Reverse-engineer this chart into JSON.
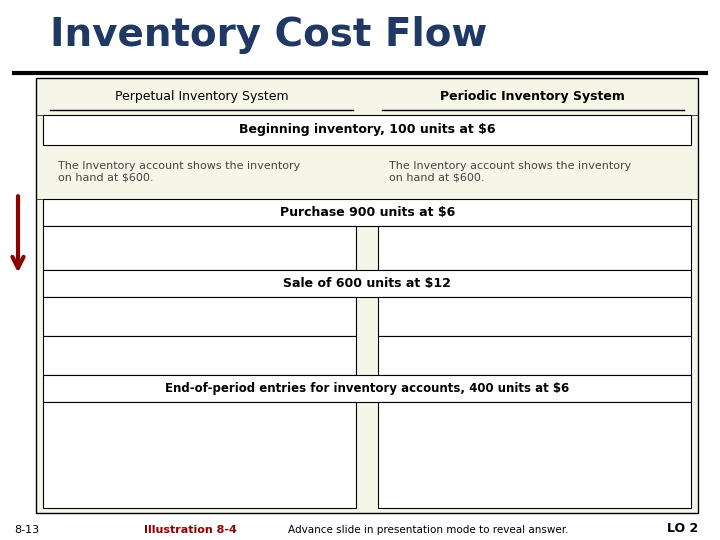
{
  "title": "Inventory Cost Flow",
  "title_color": "#1F3864",
  "title_fontsize": 28,
  "background_color": "#FFFFFF",
  "table_bg": "#F5F5E8",
  "header_left": "Perpetual Inventory System",
  "header_right": "Periodic Inventory System",
  "row1_label": "Beginning inventory, 100 units at $6",
  "row1_text_left": "The Inventory account shows the inventory\non hand at $600.",
  "row1_text_right": "The Inventory account shows the inventory\non hand at $600.",
  "row2_label": "Purchase 900 units at $6",
  "row3_label": "Sale of 600 units at $12",
  "row4_label": "End-of-period entries for inventory accounts, 400 units at $6",
  "footer_left": "8-13",
  "footer_center_bold": "Illustration 8-4",
  "footer_center_text": "Advance slide in presentation mode to reveal answer.",
  "footer_right": "LO 2",
  "footer_color_bold": "#8B0000",
  "arrow_color": "#8B0000"
}
